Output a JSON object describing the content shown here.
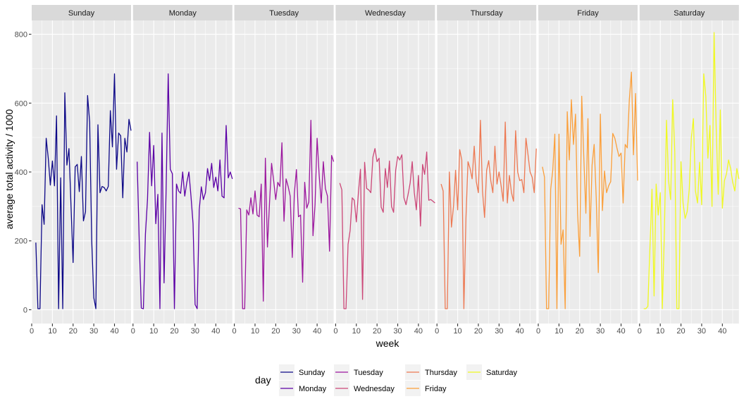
{
  "chart_data": {
    "type": "line",
    "facet_by": "day",
    "panels": [
      "Sunday",
      "Monday",
      "Tuesday",
      "Wednesday",
      "Thursday",
      "Friday",
      "Saturday"
    ],
    "xlabel": "week",
    "ylabel": "average total activity / 1000",
    "xlim": [
      0,
      48
    ],
    "ylim": [
      -40,
      840
    ],
    "x_ticks": [
      0,
      10,
      20,
      30,
      40
    ],
    "y_ticks": [
      0,
      200,
      400,
      600,
      800
    ],
    "x": [
      2,
      3,
      4,
      5,
      6,
      7,
      8,
      9,
      10,
      11,
      12,
      13,
      14,
      15,
      16,
      17,
      18,
      19,
      20,
      21,
      22,
      23,
      24,
      25,
      26,
      27,
      28,
      29,
      30,
      31,
      32,
      33,
      34,
      35,
      36,
      37,
      38,
      39,
      40,
      41,
      42,
      43,
      44,
      45,
      46,
      47,
      48
    ],
    "legend": {
      "title": "day",
      "position": "bottom"
    },
    "series": [
      {
        "name": "Sunday",
        "color": "#0d0887",
        "values": [
          195,
          3,
          3,
          305,
          248,
          498,
          440,
          362,
          432,
          360,
          563,
          3,
          383,
          3,
          630,
          420,
          468,
          300,
          137,
          415,
          422,
          343,
          445,
          258,
          285,
          622,
          545,
          200,
          35,
          3,
          537,
          340,
          358,
          355,
          345,
          358,
          578,
          473,
          685,
          408,
          513,
          505,
          325,
          498,
          458,
          553,
          520
        ]
      },
      {
        "name": "Monday",
        "color": "#5c01a6",
        "values": [
          430,
          200,
          5,
          3,
          220,
          320,
          515,
          360,
          477,
          250,
          335,
          3,
          513,
          78,
          350,
          685,
          408,
          395,
          3,
          365,
          345,
          338,
          400,
          330,
          370,
          400,
          330,
          250,
          15,
          3,
          290,
          357,
          320,
          340,
          410,
          375,
          425,
          355,
          385,
          345,
          435,
          330,
          325,
          535,
          383,
          400,
          380
        ]
      },
      {
        "name": "Tuesday",
        "color": "#9c179e",
        "values": [
          295,
          293,
          3,
          3,
          290,
          275,
          325,
          278,
          345,
          275,
          270,
          365,
          25,
          440,
          182,
          310,
          425,
          375,
          320,
          370,
          358,
          485,
          257,
          380,
          358,
          330,
          152,
          338,
          407,
          270,
          275,
          80,
          370,
          295,
          313,
          550,
          215,
          305,
          498,
          390,
          310,
          430,
          352,
          330,
          170,
          448,
          430
        ]
      },
      {
        "name": "Wednesday",
        "color": "#cc4778",
        "values": [
          368,
          348,
          3,
          3,
          190,
          230,
          325,
          318,
          255,
          340,
          408,
          30,
          428,
          352,
          348,
          340,
          443,
          468,
          430,
          440,
          298,
          283,
          410,
          355,
          432,
          300,
          283,
          405,
          445,
          435,
          450,
          325,
          305,
          335,
          368,
          430,
          340,
          290,
          390,
          243,
          422,
          393,
          458,
          318,
          320,
          315,
          310
        ]
      },
      {
        "name": "Thursday",
        "color": "#ed7953",
        "values": [
          365,
          345,
          3,
          3,
          400,
          240,
          300,
          405,
          290,
          465,
          435,
          3,
          265,
          430,
          410,
          380,
          475,
          372,
          340,
          550,
          345,
          268,
          405,
          433,
          375,
          340,
          475,
          365,
          400,
          360,
          315,
          545,
          310,
          390,
          340,
          315,
          520,
          400,
          375,
          378,
          340,
          498,
          450,
          400,
          385,
          340,
          468
        ]
      },
      {
        "name": "Friday",
        "color": "#fb9f3a",
        "values": [
          415,
          385,
          3,
          3,
          350,
          405,
          510,
          3,
          510,
          190,
          232,
          3,
          575,
          435,
          610,
          480,
          568,
          280,
          155,
          620,
          443,
          280,
          555,
          213,
          420,
          480,
          325,
          108,
          568,
          288,
          403,
          340,
          360,
          372,
          512,
          498,
          470,
          445,
          455,
          310,
          480,
          470,
          610,
          690,
          450,
          628,
          375
        ]
      },
      {
        "name": "Saturday",
        "color": "#f0f921",
        "values": [
          3,
          3,
          10,
          180,
          350,
          40,
          365,
          275,
          340,
          3,
          230,
          550,
          375,
          320,
          610,
          460,
          3,
          3,
          430,
          310,
          265,
          285,
          350,
          500,
          555,
          345,
          310,
          428,
          305,
          685,
          620,
          440,
          535,
          300,
          805,
          530,
          335,
          580,
          295,
          375,
          395,
          435,
          410,
          370,
          345,
          410,
          380
        ]
      }
    ]
  }
}
